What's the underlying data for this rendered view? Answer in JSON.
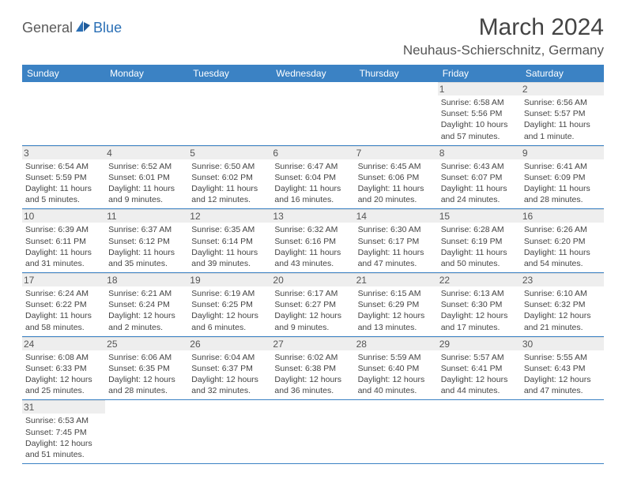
{
  "logo": {
    "text1": "General",
    "text2": "Blue"
  },
  "title": "March 2024",
  "location": "Neuhaus-Schierschnitz, Germany",
  "colors": {
    "header_bg": "#3b82c4",
    "header_text": "#ffffff",
    "daynum_bg": "#eeeeee",
    "row_divider": "#3b82c4",
    "cell_divider": "#dddddd",
    "text": "#444444"
  },
  "day_headers": [
    "Sunday",
    "Monday",
    "Tuesday",
    "Wednesday",
    "Thursday",
    "Friday",
    "Saturday"
  ],
  "weeks": [
    [
      null,
      null,
      null,
      null,
      null,
      {
        "n": "1",
        "sr": "6:58 AM",
        "ss": "5:56 PM",
        "dl": "10 hours and 57 minutes."
      },
      {
        "n": "2",
        "sr": "6:56 AM",
        "ss": "5:57 PM",
        "dl": "11 hours and 1 minute."
      }
    ],
    [
      {
        "n": "3",
        "sr": "6:54 AM",
        "ss": "5:59 PM",
        "dl": "11 hours and 5 minutes."
      },
      {
        "n": "4",
        "sr": "6:52 AM",
        "ss": "6:01 PM",
        "dl": "11 hours and 9 minutes."
      },
      {
        "n": "5",
        "sr": "6:50 AM",
        "ss": "6:02 PM",
        "dl": "11 hours and 12 minutes."
      },
      {
        "n": "6",
        "sr": "6:47 AM",
        "ss": "6:04 PM",
        "dl": "11 hours and 16 minutes."
      },
      {
        "n": "7",
        "sr": "6:45 AM",
        "ss": "6:06 PM",
        "dl": "11 hours and 20 minutes."
      },
      {
        "n": "8",
        "sr": "6:43 AM",
        "ss": "6:07 PM",
        "dl": "11 hours and 24 minutes."
      },
      {
        "n": "9",
        "sr": "6:41 AM",
        "ss": "6:09 PM",
        "dl": "11 hours and 28 minutes."
      }
    ],
    [
      {
        "n": "10",
        "sr": "6:39 AM",
        "ss": "6:11 PM",
        "dl": "11 hours and 31 minutes."
      },
      {
        "n": "11",
        "sr": "6:37 AM",
        "ss": "6:12 PM",
        "dl": "11 hours and 35 minutes."
      },
      {
        "n": "12",
        "sr": "6:35 AM",
        "ss": "6:14 PM",
        "dl": "11 hours and 39 minutes."
      },
      {
        "n": "13",
        "sr": "6:32 AM",
        "ss": "6:16 PM",
        "dl": "11 hours and 43 minutes."
      },
      {
        "n": "14",
        "sr": "6:30 AM",
        "ss": "6:17 PM",
        "dl": "11 hours and 47 minutes."
      },
      {
        "n": "15",
        "sr": "6:28 AM",
        "ss": "6:19 PM",
        "dl": "11 hours and 50 minutes."
      },
      {
        "n": "16",
        "sr": "6:26 AM",
        "ss": "6:20 PM",
        "dl": "11 hours and 54 minutes."
      }
    ],
    [
      {
        "n": "17",
        "sr": "6:24 AM",
        "ss": "6:22 PM",
        "dl": "11 hours and 58 minutes."
      },
      {
        "n": "18",
        "sr": "6:21 AM",
        "ss": "6:24 PM",
        "dl": "12 hours and 2 minutes."
      },
      {
        "n": "19",
        "sr": "6:19 AM",
        "ss": "6:25 PM",
        "dl": "12 hours and 6 minutes."
      },
      {
        "n": "20",
        "sr": "6:17 AM",
        "ss": "6:27 PM",
        "dl": "12 hours and 9 minutes."
      },
      {
        "n": "21",
        "sr": "6:15 AM",
        "ss": "6:29 PM",
        "dl": "12 hours and 13 minutes."
      },
      {
        "n": "22",
        "sr": "6:13 AM",
        "ss": "6:30 PM",
        "dl": "12 hours and 17 minutes."
      },
      {
        "n": "23",
        "sr": "6:10 AM",
        "ss": "6:32 PM",
        "dl": "12 hours and 21 minutes."
      }
    ],
    [
      {
        "n": "24",
        "sr": "6:08 AM",
        "ss": "6:33 PM",
        "dl": "12 hours and 25 minutes."
      },
      {
        "n": "25",
        "sr": "6:06 AM",
        "ss": "6:35 PM",
        "dl": "12 hours and 28 minutes."
      },
      {
        "n": "26",
        "sr": "6:04 AM",
        "ss": "6:37 PM",
        "dl": "12 hours and 32 minutes."
      },
      {
        "n": "27",
        "sr": "6:02 AM",
        "ss": "6:38 PM",
        "dl": "12 hours and 36 minutes."
      },
      {
        "n": "28",
        "sr": "5:59 AM",
        "ss": "6:40 PM",
        "dl": "12 hours and 40 minutes."
      },
      {
        "n": "29",
        "sr": "5:57 AM",
        "ss": "6:41 PM",
        "dl": "12 hours and 44 minutes."
      },
      {
        "n": "30",
        "sr": "5:55 AM",
        "ss": "6:43 PM",
        "dl": "12 hours and 47 minutes."
      }
    ],
    [
      {
        "n": "31",
        "sr": "6:53 AM",
        "ss": "7:45 PM",
        "dl": "12 hours and 51 minutes."
      },
      null,
      null,
      null,
      null,
      null,
      null
    ]
  ],
  "labels": {
    "sunrise": "Sunrise:",
    "sunset": "Sunset:",
    "daylight": "Daylight:"
  }
}
